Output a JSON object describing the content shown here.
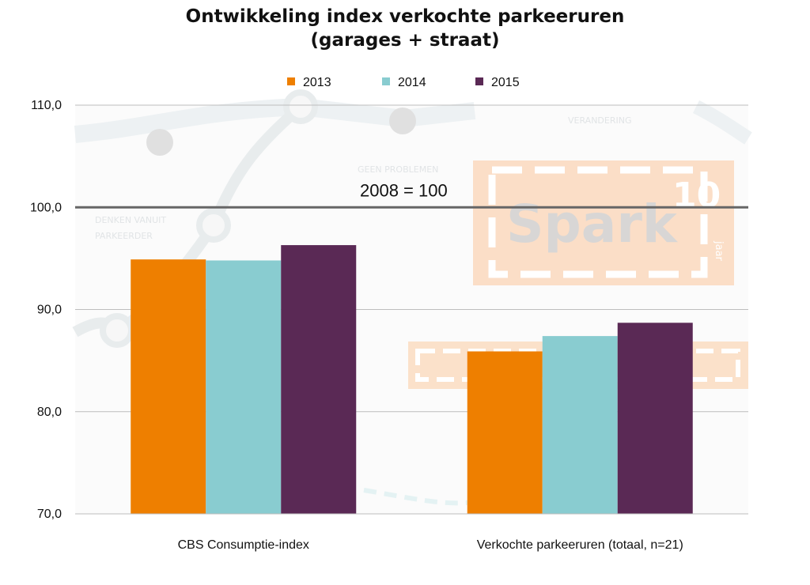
{
  "chart_data": {
    "type": "bar",
    "title_lines": [
      "Ontwikkeling index verkochte parkeeruren",
      "(garages + straat)"
    ],
    "categories": [
      "CBS Consumptie-index",
      "Verkochte parkeeruren (totaal, n=21)"
    ],
    "series": [
      {
        "name": "2013",
        "values": [
          94.9,
          85.9
        ],
        "color": "#EE7F00"
      },
      {
        "name": "2014",
        "values": [
          94.8,
          87.4
        ],
        "color": "#89CCD0"
      },
      {
        "name": "2015",
        "values": [
          96.3,
          88.7
        ],
        "color": "#5A2955"
      }
    ],
    "ylim": [
      70,
      110
    ],
    "yticks": [
      "70,0",
      "80,0",
      "90,0",
      "100,0",
      "110,0"
    ],
    "reference_line": {
      "value": 100,
      "label": "2008 = 100",
      "color": "#666666"
    },
    "grid": true,
    "legend_position": "top-center"
  },
  "watermark": {
    "texts": [
      "GEEN PROBLEMEN",
      "DENKEN VANUIT",
      "PARKEERDER",
      "VERANDERING"
    ],
    "logo_text": "Spark",
    "logo_number": "10",
    "logo_sub": "jaar"
  }
}
